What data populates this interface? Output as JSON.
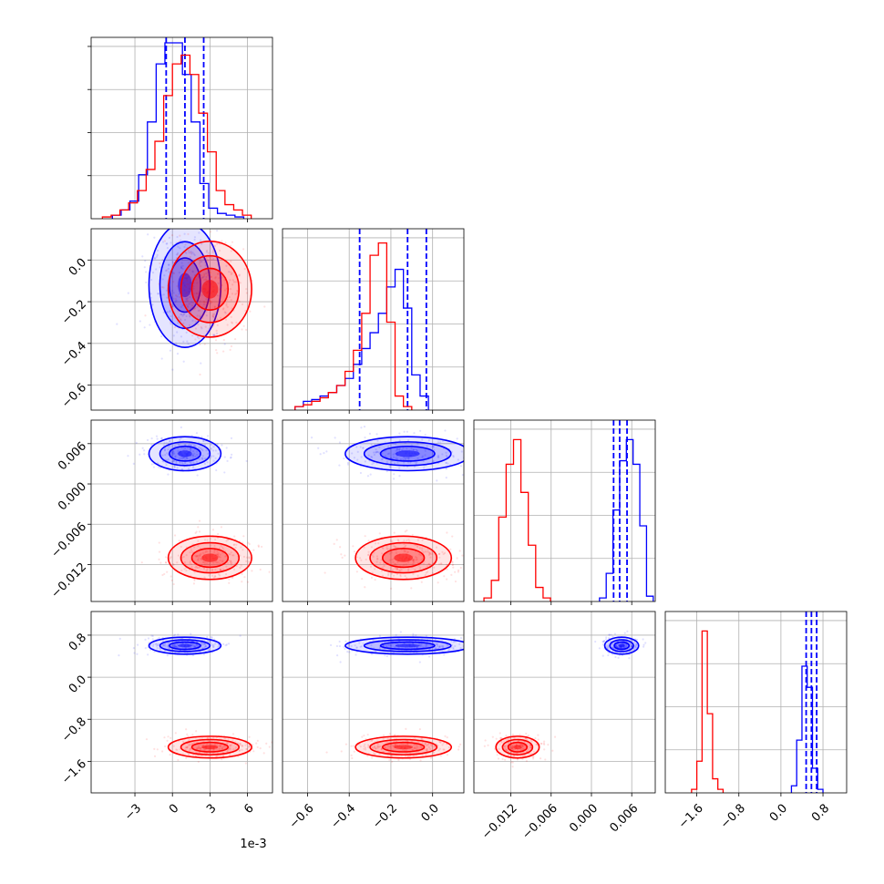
{
  "colors": {
    "series_a": "#0000ff",
    "series_b": "#ff0000",
    "grid": "#b0b0b0",
    "frame": "#000000"
  },
  "x_offset_label": "1e-3",
  "chart_data": {
    "type": "corner",
    "grid": true,
    "parameters": [
      {
        "range": [
          -6.5,
          8.0
        ],
        "ticks": [
          -3,
          0,
          3,
          6
        ],
        "tick_labels": [
          "−3",
          "0",
          "3",
          "6"
        ],
        "offset_label": "1e-3",
        "units_scale": 0.001
      },
      {
        "range": [
          -0.72,
          0.15
        ],
        "ticks": [
          -0.6,
          -0.4,
          -0.2,
          0.0
        ],
        "tick_labels": [
          "−0.6",
          "−0.4",
          "−0.2",
          "0.0"
        ]
      },
      {
        "range": [
          -0.0175,
          0.0095
        ],
        "ticks": [
          -0.012,
          -0.006,
          0.0,
          0.006
        ],
        "tick_labels": [
          "−0.012",
          "−0.006",
          "0.000",
          "0.006"
        ]
      },
      {
        "range": [
          -2.2,
          1.25
        ],
        "ticks": [
          -1.6,
          -0.8,
          0.0,
          0.8
        ],
        "tick_labels": [
          "−1.6",
          "−0.8",
          "0.0",
          "0.8"
        ]
      }
    ],
    "series": [
      {
        "color": "#0000ff",
        "means": [
          1.0,
          -0.12,
          0.0045,
          0.6
        ],
        "sds": [
          1.25,
          0.13,
          0.0011,
          0.07
        ],
        "quantiles": [
          [
            -0.5,
            1.0,
            2.5
          ],
          [
            -0.35,
            -0.12,
            -0.03
          ],
          [
            0.0033,
            0.0042,
            0.0053
          ],
          [
            0.48,
            0.58,
            0.68
          ]
        ],
        "hist": [
          [
            0.02,
            0.05,
            0.1,
            0.25,
            0.55,
            0.88,
            1.0,
            1.0,
            0.82,
            0.55,
            0.2,
            0.06,
            0.03,
            0.02,
            0.01
          ],
          [
            0.02,
            0.05,
            0.06,
            0.08,
            0.1,
            0.14,
            0.18,
            0.26,
            0.35,
            0.44,
            0.55,
            0.7,
            0.8,
            0.58,
            0.2,
            0.08
          ],
          [
            0.02,
            0.16,
            0.52,
            0.8,
            0.92,
            0.78,
            0.43,
            0.03
          ],
          [
            0.04,
            0.3,
            0.72,
            0.6,
            0.14,
            0.02
          ]
        ],
        "hist_x0": [
          -4.8,
          -0.66,
          0.0012,
          0.2
        ],
        "hist_w": [
          0.7,
          0.04,
          0.001,
          0.1
        ]
      },
      {
        "color": "#ff0000",
        "means": [
          3.0,
          -0.14,
          -0.011,
          -1.33
        ],
        "sds": [
          1.45,
          0.1,
          0.0014,
          0.09
        ],
        "quantiles": [],
        "hist": [
          [
            0.01,
            0.02,
            0.05,
            0.09,
            0.16,
            0.28,
            0.44,
            0.7,
            0.88,
            0.93,
            0.82,
            0.6,
            0.38,
            0.16,
            0.08,
            0.05,
            0.02
          ],
          [
            0.02,
            0.03,
            0.05,
            0.07,
            0.1,
            0.14,
            0.22,
            0.34,
            0.55,
            0.88,
            0.95,
            0.5,
            0.08,
            0.02
          ],
          [
            0.02,
            0.12,
            0.48,
            0.78,
            0.92,
            0.62,
            0.32,
            0.08,
            0.02
          ],
          [
            0.02,
            0.18,
            0.92,
            0.45,
            0.08,
            0.02
          ]
        ],
        "hist_x0": [
          -5.6,
          -0.66,
          -0.016,
          -1.7
        ],
        "hist_w": [
          0.7,
          0.04,
          0.0011,
          0.1
        ]
      }
    ]
  }
}
